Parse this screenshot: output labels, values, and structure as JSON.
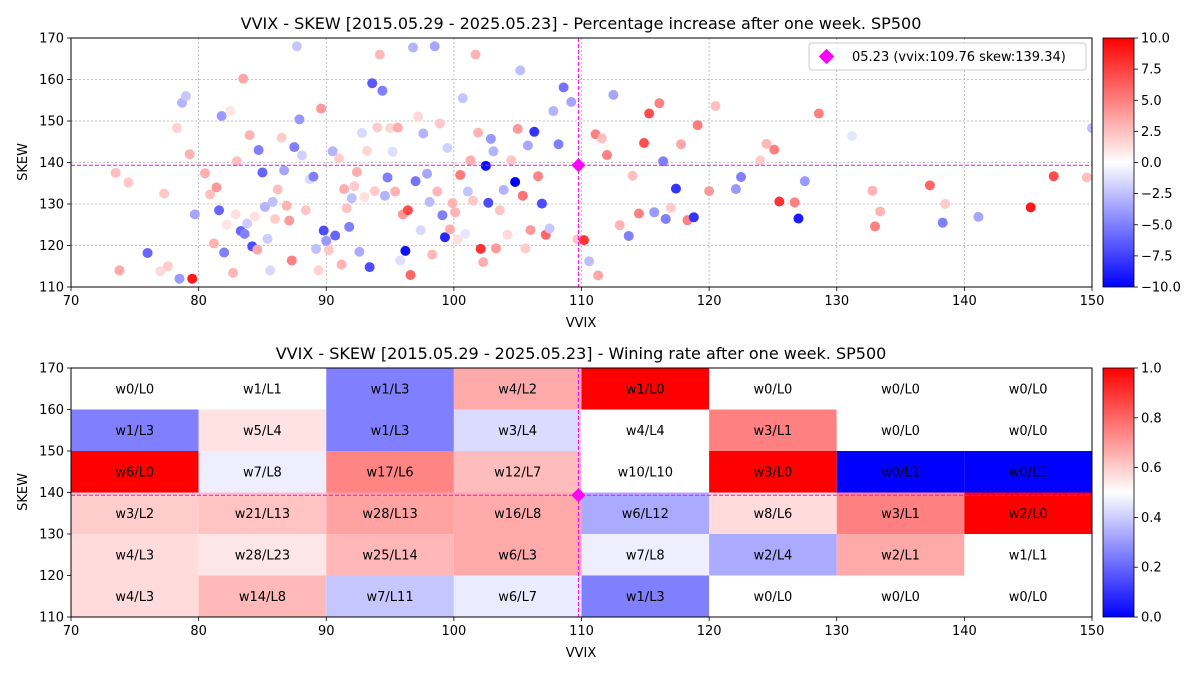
{
  "chart_data": [
    {
      "type": "scatter",
      "title": "VVIX - SKEW [2015.05.29 - 2025.05.23]  - Percentage increase after one week. SP500",
      "xlabel": "VVIX",
      "ylabel": "SKEW",
      "xlim": [
        70,
        150
      ],
      "ylim": [
        110,
        170
      ],
      "xticks": [
        "70",
        "80",
        "90",
        "100",
        "110",
        "120",
        "130",
        "140",
        "150"
      ],
      "yticks": [
        "110",
        "120",
        "130",
        "140",
        "150",
        "160",
        "170"
      ],
      "grid": true,
      "colorbar": {
        "min": -10,
        "max": 10,
        "ticks": [
          "−10.0",
          "−7.5",
          "−5.0",
          "−2.5",
          "0.0",
          "2.5",
          "5.0",
          "7.5",
          "10.0"
        ],
        "colors": [
          "#0000ff",
          "#ffffff",
          "#ff0000"
        ]
      },
      "marker": {
        "x": 109.76,
        "y": 139.34,
        "color": "#ff00ff"
      },
      "legend": {
        "label": "05.23 (vvix:109.76 skew:139.34)",
        "position": "upper right"
      },
      "points": [
        [
          73.5,
          137.5,
          2.5
        ],
        [
          73.8,
          114,
          3.5
        ],
        [
          74.5,
          135.2,
          2.2
        ],
        [
          76,
          118.2,
          -6
        ],
        [
          77,
          113.8,
          1.5
        ],
        [
          77.3,
          132.5,
          2.2
        ],
        [
          77.6,
          115,
          2
        ],
        [
          78.3,
          148.3,
          1.8
        ],
        [
          78.5,
          112,
          -4
        ],
        [
          78.7,
          154.4,
          -3
        ],
        [
          79,
          156,
          -2.2
        ],
        [
          79.3,
          142,
          3
        ],
        [
          79.5,
          112,
          9
        ],
        [
          79.7,
          127.5,
          -3.5
        ],
        [
          80.5,
          137.4,
          3.2
        ],
        [
          80.9,
          132.3,
          2.5
        ],
        [
          81.2,
          120.5,
          3
        ],
        [
          81.4,
          134,
          4
        ],
        [
          81.6,
          128.5,
          -6
        ],
        [
          81.8,
          151.2,
          -4
        ],
        [
          82,
          118.3,
          -5
        ],
        [
          82.2,
          125,
          1
        ],
        [
          82.5,
          152.4,
          1
        ],
        [
          82.7,
          113.4,
          2.8
        ],
        [
          82.9,
          127.5,
          1.2
        ],
        [
          83,
          140.3,
          2.5
        ],
        [
          83.3,
          123.5,
          -6
        ],
        [
          83.5,
          160.2,
          3.5
        ],
        [
          83.6,
          122.8,
          -5
        ],
        [
          83.8,
          125.3,
          -2
        ],
        [
          84,
          146.6,
          3
        ],
        [
          84.2,
          119.8,
          -7
        ],
        [
          84.4,
          127,
          1.2
        ],
        [
          84.6,
          119,
          3.5
        ],
        [
          84.7,
          143,
          -5
        ],
        [
          85,
          137.6,
          -6
        ],
        [
          85.2,
          129.3,
          -3
        ],
        [
          85.4,
          121.6,
          -2
        ],
        [
          85.6,
          114,
          -1.5
        ],
        [
          85.8,
          130.5,
          -2.5
        ],
        [
          86,
          126.4,
          2
        ],
        [
          86.2,
          133.5,
          2.5
        ],
        [
          86.5,
          146,
          2
        ],
        [
          86.7,
          138.1,
          -3.5
        ],
        [
          86.9,
          129.6,
          3
        ],
        [
          87.1,
          126,
          4
        ],
        [
          87.3,
          116.4,
          5
        ],
        [
          87.5,
          143.7,
          -5
        ],
        [
          87.7,
          168,
          -2.2
        ],
        [
          87.9,
          150.4,
          -4
        ],
        [
          88.1,
          141.7,
          -1.8
        ],
        [
          88.4,
          128.5,
          2.3
        ],
        [
          88.7,
          136,
          -1.5
        ],
        [
          89,
          136.6,
          -5
        ],
        [
          89.2,
          119.2,
          -2.5
        ],
        [
          89.4,
          114,
          1.8
        ],
        [
          89.6,
          153,
          4
        ],
        [
          89.8,
          123.6,
          -7
        ],
        [
          90,
          121.1,
          -4
        ],
        [
          90.2,
          118.9,
          2.2
        ],
        [
          90.5,
          142.7,
          -3
        ],
        [
          90.7,
          122.4,
          -6
        ],
        [
          91,
          141,
          2
        ],
        [
          91.2,
          115.4,
          3
        ],
        [
          91.4,
          133.6,
          3.2
        ],
        [
          91.6,
          129,
          2.4
        ],
        [
          91.8,
          124.5,
          -5
        ],
        [
          92,
          131.4,
          -2.5
        ],
        [
          92.2,
          134.3,
          2
        ],
        [
          92.4,
          137.7,
          3.2
        ],
        [
          92.6,
          118.5,
          -3.3
        ],
        [
          92.8,
          147.1,
          -1.5
        ],
        [
          93,
          131.7,
          1.2
        ],
        [
          93.2,
          142.8,
          1.6
        ],
        [
          93.4,
          114.8,
          -7
        ],
        [
          93.6,
          159.1,
          -6.5
        ],
        [
          93.8,
          133.1,
          2
        ],
        [
          94,
          148.4,
          2
        ],
        [
          94.2,
          166,
          2.8
        ],
        [
          94.4,
          157.3,
          -5
        ],
        [
          94.6,
          132,
          -3
        ],
        [
          94.8,
          136.4,
          -5
        ],
        [
          95,
          148.3,
          1.6
        ],
        [
          95.2,
          142.6,
          -1.3
        ],
        [
          95.4,
          133,
          3
        ],
        [
          95.6,
          148.4,
          3.3
        ],
        [
          95.8,
          116.4,
          -1.3
        ],
        [
          96,
          127.5,
          4
        ],
        [
          96.2,
          118.7,
          -9.5
        ],
        [
          96.4,
          128.5,
          7
        ],
        [
          96.6,
          112.9,
          6
        ],
        [
          96.8,
          167.7,
          -3
        ],
        [
          97,
          135.5,
          -5.5
        ],
        [
          97.2,
          151.1,
          1.5
        ],
        [
          97.4,
          123.7,
          -1.5
        ],
        [
          97.6,
          147,
          -3
        ],
        [
          97.9,
          137.3,
          -3.5
        ],
        [
          98.1,
          130.5,
          -2.7
        ],
        [
          98.3,
          117.8,
          2.8
        ],
        [
          98.5,
          168,
          -3.5
        ],
        [
          98.7,
          133,
          2.8
        ],
        [
          98.9,
          149.4,
          2.2
        ],
        [
          99.1,
          127.3,
          -5
        ],
        [
          99.3,
          122,
          -8.5
        ],
        [
          99.5,
          143.5,
          -1.8
        ],
        [
          99.7,
          123.9,
          3.3
        ],
        [
          99.9,
          130.2,
          3
        ],
        [
          100.1,
          128,
          3
        ],
        [
          100.3,
          121.5,
          1.2
        ],
        [
          100.5,
          137,
          5.2
        ],
        [
          100.7,
          155.5,
          -2.3
        ],
        [
          100.9,
          122.8,
          -1
        ],
        [
          101.1,
          133,
          -2.3
        ],
        [
          101.3,
          140.5,
          3.2
        ],
        [
          101.5,
          130.8,
          2.2
        ],
        [
          101.7,
          166,
          3
        ],
        [
          101.9,
          147.2,
          3
        ],
        [
          102.1,
          119.2,
          8
        ],
        [
          102.3,
          116,
          3.2
        ],
        [
          102.5,
          139.2,
          -9.5
        ],
        [
          102.7,
          130.3,
          -7
        ],
        [
          102.9,
          145.7,
          -4
        ],
        [
          103.1,
          142.7,
          -3
        ],
        [
          103.3,
          119.3,
          4
        ],
        [
          103.6,
          128.5,
          2.3
        ],
        [
          103.9,
          133.4,
          -3
        ],
        [
          104.2,
          122.6,
          1.5
        ],
        [
          104.5,
          140.5,
          2.3
        ],
        [
          104.8,
          135.3,
          -10
        ],
        [
          105,
          148.1,
          4
        ],
        [
          105.2,
          162.2,
          -2.5
        ],
        [
          105.4,
          132,
          5.5
        ],
        [
          105.6,
          119.3,
          2
        ],
        [
          105.8,
          144.1,
          -3.5
        ],
        [
          106,
          123.7,
          4
        ],
        [
          106.3,
          147.4,
          -8
        ],
        [
          106.6,
          136.7,
          4.8
        ],
        [
          106.9,
          130.1,
          -7
        ],
        [
          107.2,
          122.6,
          6
        ],
        [
          107.5,
          124.1,
          -2.2
        ],
        [
          107.8,
          152.4,
          -3
        ],
        [
          108.2,
          144.4,
          -5
        ],
        [
          108.6,
          158.1,
          -5.5
        ],
        [
          109.2,
          154.6,
          -3.5
        ],
        [
          109.7,
          121.5,
          2.5
        ],
        [
          110.2,
          121.3,
          8
        ],
        [
          110.6,
          116.2,
          -2.5
        ],
        [
          111.1,
          146.8,
          5
        ],
        [
          111.3,
          112.8,
          3.5
        ],
        [
          111.6,
          145.8,
          2.5
        ],
        [
          112,
          141.8,
          5
        ],
        [
          112.5,
          156.3,
          -3.5
        ],
        [
          113,
          124.9,
          3
        ],
        [
          113.7,
          122.3,
          -5
        ],
        [
          114,
          136.8,
          2.5
        ],
        [
          114.5,
          127.7,
          5
        ],
        [
          114.9,
          144.7,
          7
        ],
        [
          115.3,
          151.8,
          7
        ],
        [
          115.7,
          128,
          -4
        ],
        [
          116.1,
          154.3,
          5
        ],
        [
          116.4,
          140.3,
          -5
        ],
        [
          116.6,
          126.4,
          -5
        ],
        [
          117,
          129.1,
          2
        ],
        [
          117.4,
          133.7,
          -8
        ],
        [
          117.8,
          144.4,
          3.5
        ],
        [
          118.3,
          126.1,
          5
        ],
        [
          118.8,
          126.8,
          -8
        ],
        [
          119.1,
          149,
          5.2
        ],
        [
          120,
          133.1,
          4
        ],
        [
          120.5,
          153.6,
          2.5
        ],
        [
          122.1,
          133.6,
          -4
        ],
        [
          122.5,
          136.5,
          -5
        ],
        [
          124,
          140.5,
          2
        ],
        [
          124.5,
          144.5,
          2.8
        ],
        [
          125.1,
          143.1,
          5
        ],
        [
          125.5,
          130.6,
          8
        ],
        [
          126.7,
          130.4,
          5
        ],
        [
          127,
          126.5,
          -9
        ],
        [
          127.5,
          135.5,
          -4
        ],
        [
          128.6,
          151.8,
          5
        ],
        [
          131.2,
          146.4,
          -1
        ],
        [
          132.8,
          133.2,
          3
        ],
        [
          133,
          124.6,
          5
        ],
        [
          133.4,
          128.2,
          3
        ],
        [
          137.3,
          134.5,
          6
        ],
        [
          138.3,
          125.5,
          -5
        ],
        [
          138.5,
          130,
          2
        ],
        [
          141.1,
          126.9,
          -3.5
        ],
        [
          145.2,
          129.2,
          9
        ],
        [
          147,
          136.7,
          7
        ],
        [
          149.6,
          136.4,
          2.5
        ],
        [
          150,
          148.3,
          -2.5
        ]
      ]
    },
    {
      "type": "heatmap",
      "title": "VVIX - SKEW [2015.05.29 - 2025.05.23]  - Wining rate after one week. SP500",
      "xlabel": "VVIX",
      "ylabel": "SKEW",
      "xlim": [
        70,
        150
      ],
      "ylim": [
        110,
        170
      ],
      "xticks": [
        "70",
        "80",
        "90",
        "100",
        "110",
        "120",
        "130",
        "140",
        "150"
      ],
      "yticks": [
        "110",
        "120",
        "130",
        "140",
        "150",
        "160",
        "170"
      ],
      "x_edges": [
        70,
        80,
        90,
        100,
        110,
        120,
        130,
        140,
        150
      ],
      "y_edges": [
        170,
        160,
        150,
        140,
        130,
        120,
        110
      ],
      "colorbar": {
        "min": 0,
        "max": 1,
        "ticks": [
          "0.0",
          "0.2",
          "0.4",
          "0.6",
          "0.8",
          "1.0"
        ],
        "colors": [
          "#0000ff",
          "#ffffff",
          "#ff0000"
        ]
      },
      "marker": {
        "x": 109.76,
        "y": 139.34,
        "color": "#ff00ff"
      },
      "rows": [
        [
          "w0/L0",
          "w1/L1",
          "w1/L3",
          "w4/L2",
          "w1/L0",
          "w0/L0",
          "w0/L0",
          "w0/L0"
        ],
        [
          "w1/L3",
          "w5/L4",
          "w1/L3",
          "w3/L4",
          "w4/L4",
          "w3/L1",
          "w0/L0",
          "w0/L0"
        ],
        [
          "w6/L0",
          "w7/L8",
          "w17/L6",
          "w12/L7",
          "w10/L10",
          "w3/L0",
          "w0/L1",
          "w0/L1"
        ],
        [
          "w3/L2",
          "w21/L13",
          "w28/L13",
          "w16/L8",
          "w6/L12",
          "w8/L6",
          "w3/L1",
          "w2/L0"
        ],
        [
          "w4/L3",
          "w28/L23",
          "w25/L14",
          "w6/L3",
          "w7/L8",
          "w2/L4",
          "w2/L1",
          "w1/L1"
        ],
        [
          "w4/L3",
          "w14/L8",
          "w7/L11",
          "w6/L7",
          "w1/L3",
          "w0/L0",
          "w0/L0",
          "w0/L0"
        ]
      ]
    }
  ]
}
